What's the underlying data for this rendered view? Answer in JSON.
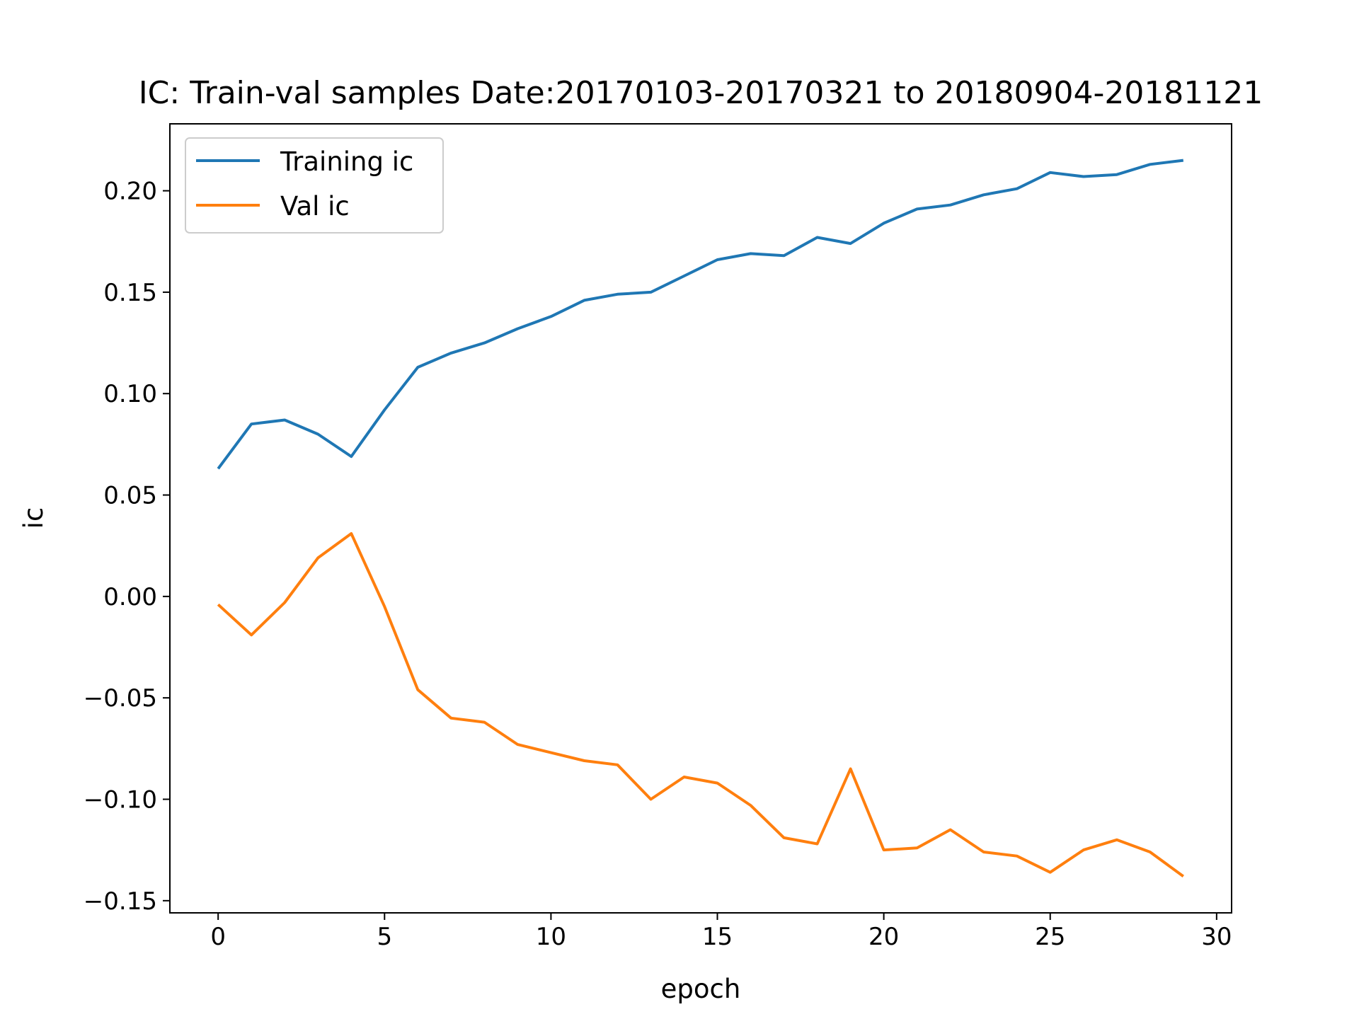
{
  "chart_data": {
    "type": "line",
    "title": "IC: Train-val samples Date:20170103-20170321 to 20180904-20181121",
    "xlabel": "epoch",
    "ylabel": "ic",
    "xlim": [
      -1.45,
      30.45
    ],
    "ylim": [
      -0.156,
      0.233
    ],
    "x_ticks": [
      0,
      5,
      10,
      15,
      20,
      25,
      30
    ],
    "x_tick_labels": [
      "0",
      "5",
      "10",
      "15",
      "20",
      "25",
      "30"
    ],
    "y_ticks": [
      -0.15,
      -0.1,
      -0.05,
      0.0,
      0.05,
      0.1,
      0.15,
      0.2
    ],
    "y_tick_labels": [
      "−0.15",
      "−0.10",
      "−0.05",
      "0.00",
      "0.05",
      "0.10",
      "0.15",
      "0.20"
    ],
    "grid": false,
    "legend_position": "top-left",
    "x": [
      0,
      1,
      2,
      3,
      4,
      5,
      6,
      7,
      8,
      9,
      10,
      11,
      12,
      13,
      14,
      15,
      16,
      17,
      18,
      19,
      20,
      21,
      22,
      23,
      24,
      25,
      26,
      27,
      28,
      29
    ],
    "series": [
      {
        "name": "Training ic",
        "color": "#1f77b4",
        "values": [
          0.063,
          0.085,
          0.087,
          0.08,
          0.069,
          0.092,
          0.113,
          0.12,
          0.125,
          0.132,
          0.138,
          0.146,
          0.149,
          0.15,
          0.158,
          0.166,
          0.169,
          0.168,
          0.177,
          0.174,
          0.184,
          0.191,
          0.193,
          0.198,
          0.201,
          0.209,
          0.207,
          0.208,
          0.213,
          0.215
        ]
      },
      {
        "name": "Val ic",
        "color": "#ff7f0e",
        "values": [
          -0.004,
          -0.019,
          -0.003,
          0.019,
          0.031,
          -0.005,
          -0.046,
          -0.06,
          -0.062,
          -0.073,
          -0.077,
          -0.081,
          -0.083,
          -0.1,
          -0.089,
          -0.092,
          -0.103,
          -0.119,
          -0.122,
          -0.085,
          -0.125,
          -0.124,
          -0.115,
          -0.126,
          -0.128,
          -0.136,
          -0.125,
          -0.12,
          -0.126,
          -0.138
        ]
      }
    ]
  }
}
